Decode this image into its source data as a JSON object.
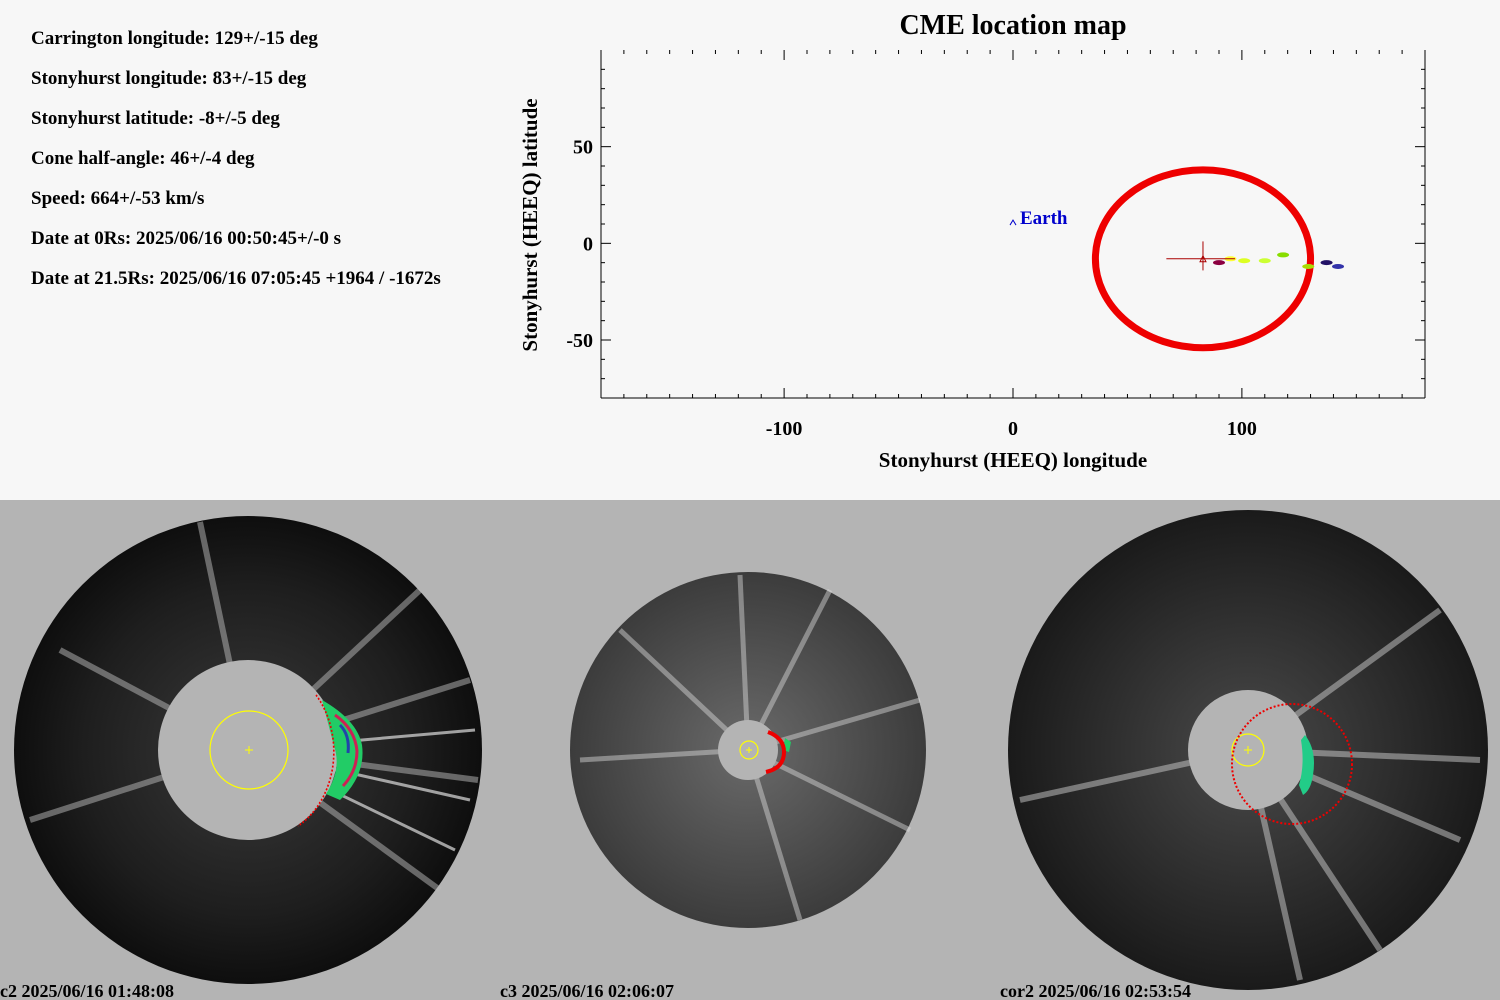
{
  "info": {
    "carrington_longitude": "Carrington longitude: 129+/-15 deg",
    "stonyhurst_longitude": "Stonyhurst longitude: 83+/-15 deg",
    "stonyhurst_latitude": "Stonyhurst latitude: -8+/-5 deg",
    "cone_half_angle": "Cone half-angle: 46+/-4 deg",
    "speed": "Speed: 664+/-53 km/s",
    "date_0rs": "Date at 0Rs: 2025/06/16 00:50:45+/-0 s",
    "date_21rs": "Date at 21.5Rs: 2025/06/16 07:05:45 +1964 / -1672s"
  },
  "chart_data": {
    "type": "scatter",
    "title": "CME location map",
    "xlabel": "Stonyhurst (HEEQ) longitude",
    "ylabel": "Stonyhurst (HEEQ) latitude",
    "xlim": [
      -180,
      180
    ],
    "ylim": [
      -80,
      100
    ],
    "xticks": [
      -100,
      0,
      100
    ],
    "xtick_labels": [
      "-100",
      "0",
      "100"
    ],
    "yticks": [
      50,
      0,
      -50
    ],
    "ytick_labels": [
      "50",
      "0",
      "-50"
    ],
    "earth": {
      "label": "Earth",
      "lon": 0,
      "lat": 11,
      "color": "#0000cc"
    },
    "cme_center": {
      "lon": 83,
      "lat": -8,
      "lon_err": 15,
      "lat_err": 5
    },
    "cone": {
      "center_lon": 83,
      "center_lat": -8,
      "half_width_lon": 47,
      "half_height_lat": 46,
      "color": "#ee0000"
    },
    "detections": [
      {
        "lon": 90,
        "lat": -10,
        "color": "#8b0040"
      },
      {
        "lon": 95,
        "lat": -8,
        "color": "#ffff33"
      },
      {
        "lon": 101,
        "lat": -9,
        "color": "#ddff22"
      },
      {
        "lon": 110,
        "lat": -9,
        "color": "#ccff33"
      },
      {
        "lon": 118,
        "lat": -6,
        "color": "#88dd00"
      },
      {
        "lon": 129,
        "lat": -12,
        "color": "#aadd00"
      },
      {
        "lon": 137,
        "lat": -10,
        "color": "#221166"
      },
      {
        "lon": 142,
        "lat": -12,
        "color": "#3333aa"
      }
    ]
  },
  "panels": [
    {
      "label": "c2 2025/06/16 01:48:08"
    },
    {
      "label": "c3 2025/06/16 02:06:07"
    },
    {
      "label": "cor2 2025/06/16 02:53:54"
    }
  ]
}
